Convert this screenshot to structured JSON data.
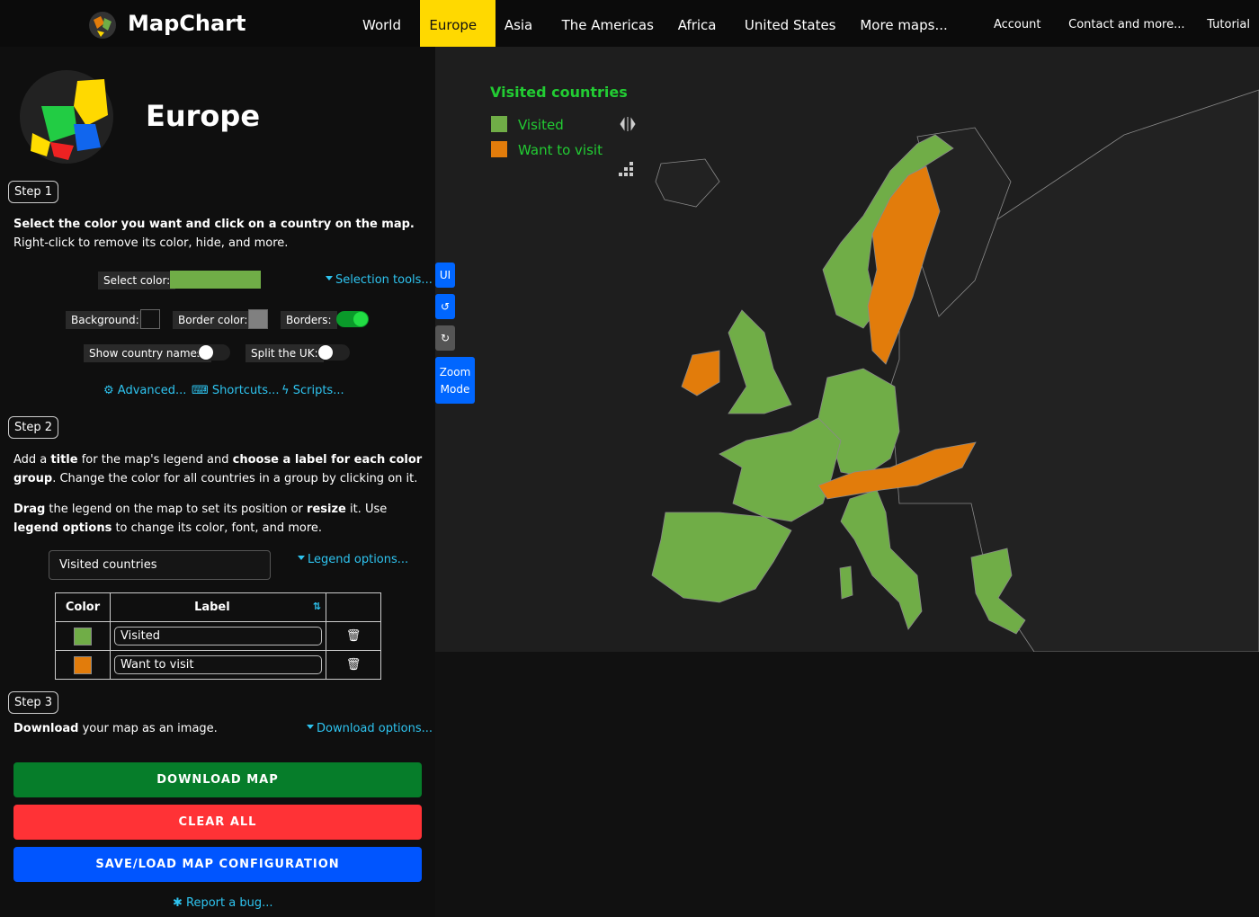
{
  "nav": {
    "brand": "MapChart",
    "items": [
      {
        "label": "World",
        "dropdown": true
      },
      {
        "label": "Europe",
        "dropdown": true,
        "active": true
      },
      {
        "label": "Asia",
        "dropdown": true
      },
      {
        "label": "The Americas",
        "dropdown": true
      },
      {
        "label": "Africa",
        "dropdown": true
      },
      {
        "label": "United States",
        "dropdown": true
      },
      {
        "label": "More maps...",
        "dropdown": true
      },
      {
        "label": "Account",
        "dropdown": true
      },
      {
        "label": "Contact and more...",
        "dropdown": true
      },
      {
        "label": "Tutorial",
        "dropdown": false
      }
    ]
  },
  "page_title": "Europe",
  "step1": {
    "label": "Step 1",
    "text": [
      {
        "text": "Select the color you want and click on a country on the map.",
        "bold": true
      },
      {
        "text": " Right-click to remove its color, hide, and more.",
        "bold": false
      }
    ],
    "select_color": {
      "label": "Select color:",
      "color": "#70ad47"
    },
    "selection_tools": "Selection tools...",
    "background": {
      "label": "Background:",
      "color": "#111111"
    },
    "border_color": {
      "label": "Border color:",
      "color": "#808080"
    },
    "borders": {
      "label": "Borders:",
      "on": true
    },
    "show_names": {
      "label": "Show country names:",
      "on": false
    },
    "split_uk": {
      "label": "Split the UK:",
      "on": false
    },
    "links": [
      "Advanced...",
      "Shortcuts...",
      "Scripts..."
    ]
  },
  "step2": {
    "label": "Step 2",
    "text1": [
      {
        "text": "Add a ",
        "bold": false
      },
      {
        "text": "title",
        "bold": true
      },
      {
        "text": " for the map's legend and ",
        "bold": false
      },
      {
        "text": "choose a label for each color group",
        "bold": true
      },
      {
        "text": ". Change the color for all countries in a group by clicking on it.",
        "bold": false
      }
    ],
    "text2": [
      {
        "text": "Drag",
        "bold": true
      },
      {
        "text": " the legend on the map to set its position or ",
        "bold": false
      },
      {
        "text": "resize",
        "bold": true
      },
      {
        "text": " it. Use ",
        "bold": false
      },
      {
        "text": "legend options",
        "bold": true
      },
      {
        "text": " to change its color, font, and more.",
        "bold": false
      }
    ],
    "legend_title": "Visited countries",
    "legend_options": "Legend options...",
    "table": {
      "headers": [
        "Color",
        "Label"
      ],
      "rows": [
        {
          "color": "#70ad47",
          "label": "Visited"
        },
        {
          "color": "#e27c0b",
          "label": "Want to visit"
        }
      ]
    }
  },
  "step3": {
    "label": "Step 3",
    "text": [
      {
        "text": "Download",
        "bold": true
      },
      {
        "text": " your map as an image.",
        "bold": false
      }
    ],
    "download_options": "Download options...",
    "buttons": [
      {
        "label": "DOWNLOAD MAP",
        "color": "#067d2a"
      },
      {
        "label": "CLEAR ALL",
        "color": "#ff3236"
      },
      {
        "label": "SAVE/LOAD MAP CONFIGURATION",
        "color": "#0055ff"
      }
    ],
    "report": "Report a bug..."
  },
  "map_controls": [
    "UI",
    "Zoom Mode"
  ]
}
